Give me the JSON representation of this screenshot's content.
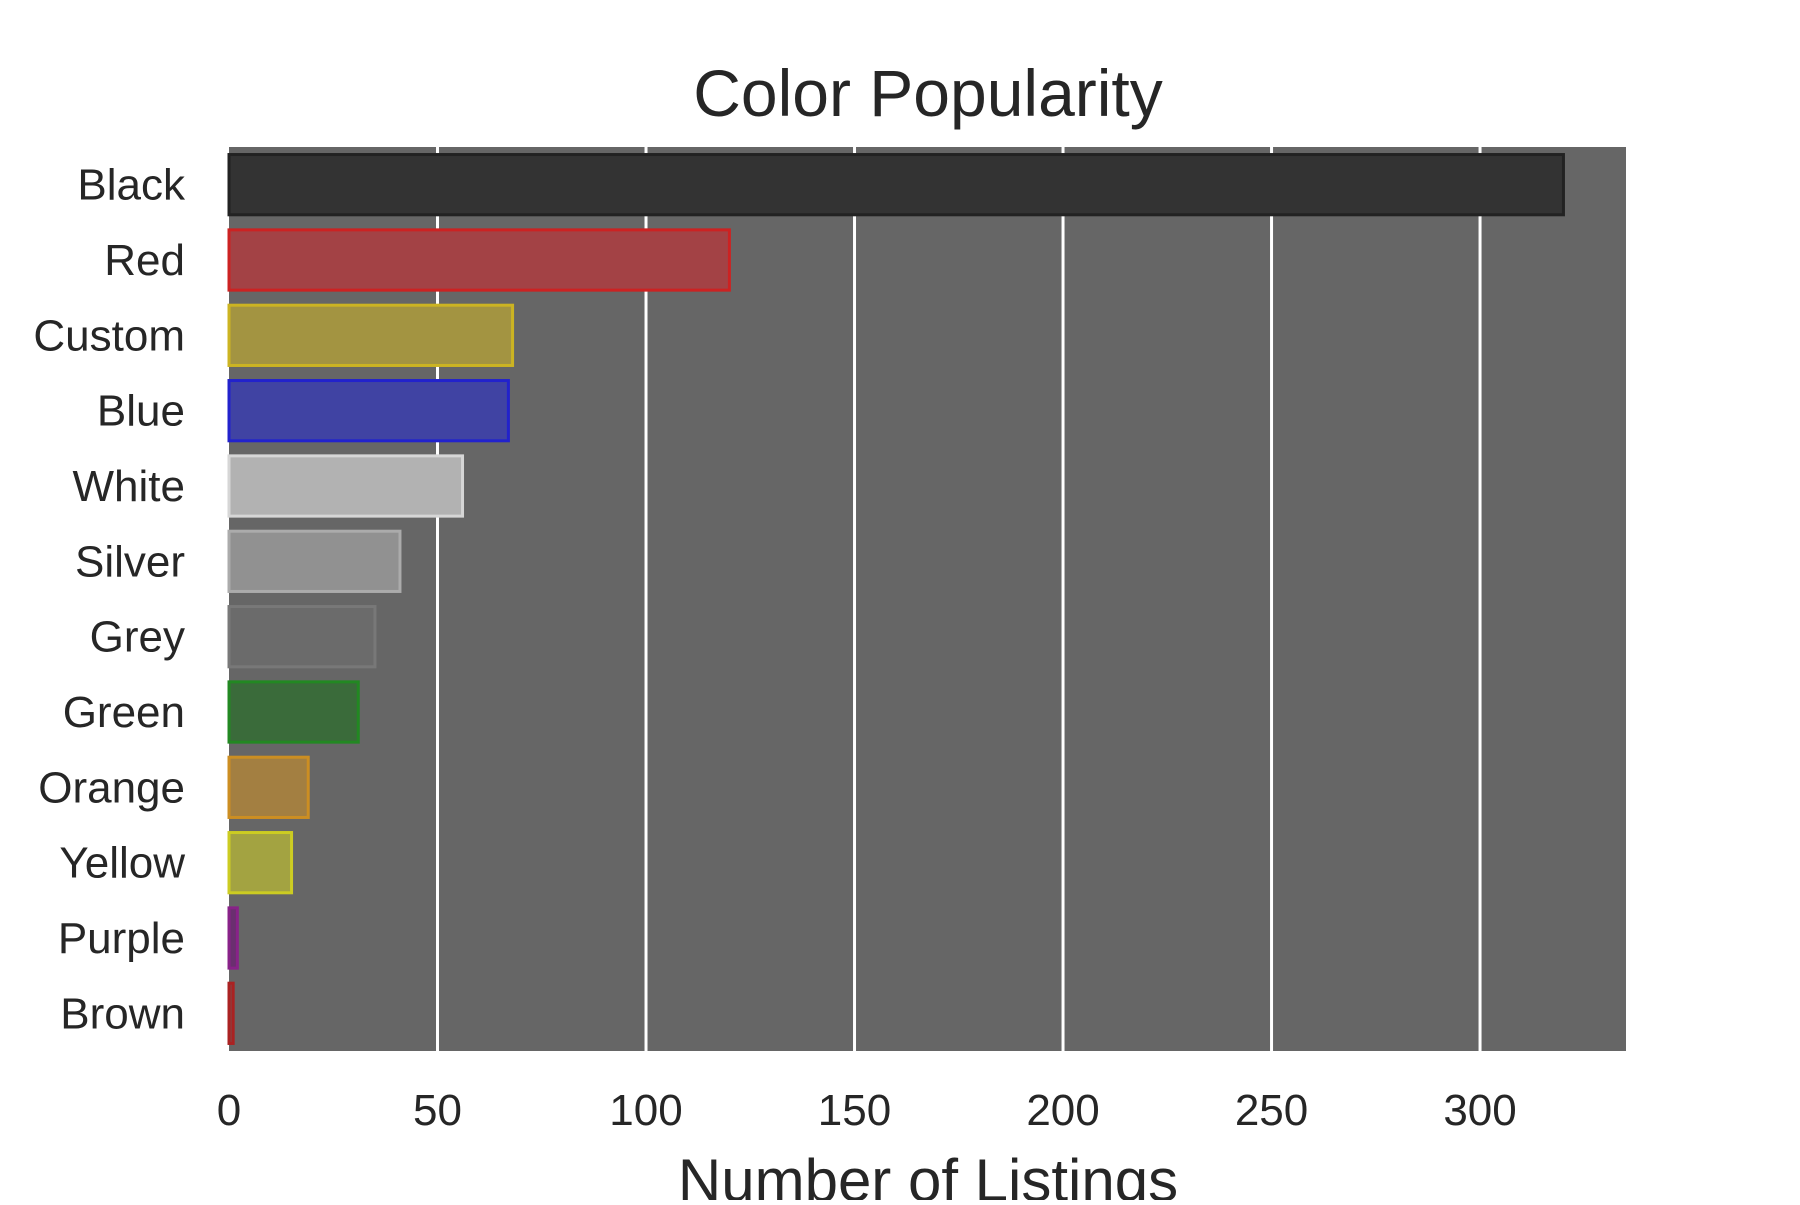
{
  "chart_data": {
    "type": "bar",
    "orientation": "horizontal",
    "title": "Color Popularity",
    "xlabel": "Number of Listings",
    "ylabel": "",
    "categories": [
      "Black",
      "Red",
      "Custom",
      "Blue",
      "White",
      "Silver",
      "Grey",
      "Green",
      "Orange",
      "Yellow",
      "Purple",
      "Brown"
    ],
    "values": [
      320,
      120,
      68,
      67,
      56,
      41,
      35,
      31,
      19,
      15,
      2,
      1
    ],
    "bar_colors": [
      "#333333",
      "#a34245",
      "#a39441",
      "#4043a3",
      "#b2b2b2",
      "#919191",
      "#6b6b6b",
      "#3a6b3a",
      "#a37f41",
      "#a3a341",
      "#6a2f6f",
      "#8a4040"
    ],
    "bar_edge_colors": [
      "#222222",
      "#cc2222",
      "#ccb422",
      "#2222cc",
      "#d6d6d6",
      "#ababab",
      "#787878",
      "#228822",
      "#cc8e22",
      "#cccc22",
      "#882288",
      "#aa2222"
    ],
    "xlim": [
      0,
      335
    ],
    "xticks": [
      0,
      50,
      100,
      150,
      200,
      250,
      300
    ],
    "grid": true,
    "plot_background": "#666666",
    "grid_color": "#ffffff"
  }
}
